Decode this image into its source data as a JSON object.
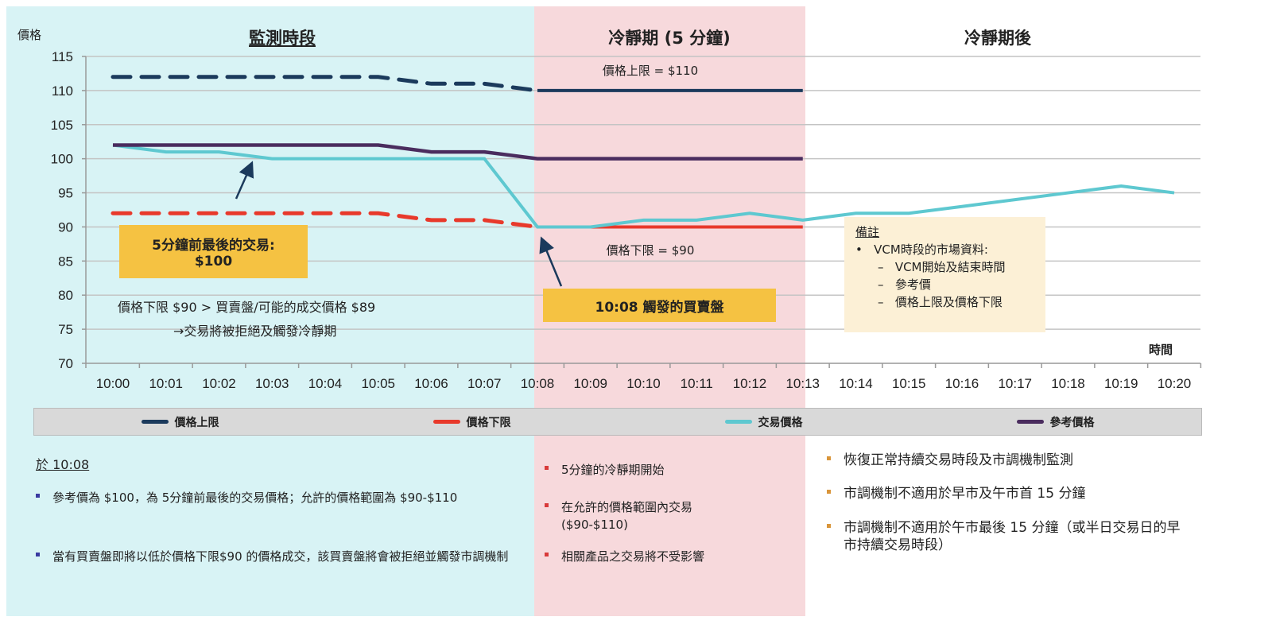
{
  "panels": {
    "monitoring": {
      "title": "監測時段",
      "color": "#d8f3f5"
    },
    "cooling": {
      "title": "冷靜期 (5 分鐘)",
      "color": "#f7d9dc"
    },
    "after": {
      "title": "冷靜期後"
    }
  },
  "chart_data": {
    "type": "line",
    "ylabel": "價格",
    "xlabel": "時間",
    "ylim": [
      70,
      115
    ],
    "yticks": [
      70,
      75,
      80,
      85,
      90,
      95,
      100,
      105,
      110,
      115
    ],
    "grid": true,
    "categories": [
      "10:00",
      "10:01",
      "10:02",
      "10:03",
      "10:04",
      "10:05",
      "10:06",
      "10:07",
      "10:08",
      "10:09",
      "10:10",
      "10:11",
      "10:12",
      "10:13",
      "10:14",
      "10:15",
      "10:16",
      "10:17",
      "10:18",
      "10:19",
      "10:20"
    ],
    "series": [
      {
        "name": "價格上限",
        "color": "#1b3a5c",
        "style": "dashed-then-solid",
        "values": [
          112,
          112,
          112,
          112,
          112,
          112,
          111,
          111,
          110,
          110,
          110,
          110,
          110,
          110,
          null,
          null,
          null,
          null,
          null,
          null,
          null
        ]
      },
      {
        "name": "價格下限",
        "color": "#e8392b",
        "style": "dashed-then-solid",
        "values": [
          92,
          92,
          92,
          92,
          92,
          92,
          91,
          91,
          90,
          90,
          90,
          90,
          90,
          90,
          null,
          null,
          null,
          null,
          null,
          null,
          null
        ]
      },
      {
        "name": "交易價格",
        "color": "#5ec8d0",
        "style": "solid",
        "values": [
          102,
          101,
          101,
          100,
          100,
          100,
          100,
          100,
          90,
          90,
          91,
          91,
          92,
          91,
          92,
          92,
          93,
          94,
          95,
          96,
          95
        ]
      },
      {
        "name": "參考價格",
        "color": "#4a2c5e",
        "style": "solid",
        "values": [
          102,
          102,
          102,
          102,
          102,
          102,
          101,
          101,
          100,
          100,
          100,
          100,
          100,
          100,
          null,
          null,
          null,
          null,
          null,
          null,
          null
        ]
      }
    ],
    "legend_placement": "bottom",
    "annotations": {
      "upper_limit": "價格上限 = $110",
      "lower_limit": "價格下限 = $90",
      "last_trade_line1": "5分鐘前最後的交易:",
      "last_trade_line2": "$100",
      "trigger": "10:08 觸發的買賣盤",
      "reject_line1": "價格下限 $90 > 買賣盤/可能的成交價格 $89",
      "reject_line2": "→交易將被拒絕及觸發冷靜期"
    }
  },
  "note": {
    "title": "備註",
    "bullet": "VCM時段的市場資料:",
    "items": [
      "VCM開始及結束時間",
      "參考價",
      "價格上限及價格下限"
    ]
  },
  "bottom": {
    "left": {
      "heading": "於 10:08",
      "bullet_color": "#3a3aa0",
      "items": [
        "參考價為 $100，為 5分鐘前最後的交易價格；允許的價格範圍為 $90-$110",
        "當有買賣盤即將以低於價格下限$90 的價格成交，該買賣盤將會被拒絕並觸發市調機制"
      ]
    },
    "middle": {
      "bullet_color": "#d83a3a",
      "items": [
        "5分鐘的冷靜期開始",
        "在允許的價格範圍內交易 ($90-$110)",
        "相關產品之交易將不受影響"
      ]
    },
    "right": {
      "bullet_color": "#d9953a",
      "items": [
        "恢復正常持續交易時段及市調機制監測",
        "市調機制不適用於早市及午市首 15 分鐘",
        "市調機制不適用於午市最後 15 分鐘（或半日交易日的早市持續交易時段）"
      ]
    }
  }
}
